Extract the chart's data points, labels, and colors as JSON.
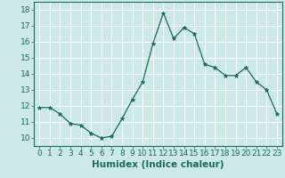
{
  "x": [
    0,
    1,
    2,
    3,
    4,
    5,
    6,
    7,
    8,
    9,
    10,
    11,
    12,
    13,
    14,
    15,
    16,
    17,
    18,
    19,
    20,
    21,
    22,
    23
  ],
  "y": [
    11.9,
    11.9,
    11.5,
    10.9,
    10.8,
    10.3,
    10.0,
    10.1,
    11.2,
    12.4,
    13.5,
    15.9,
    17.8,
    16.2,
    16.9,
    16.5,
    14.6,
    14.4,
    13.9,
    13.9,
    14.4,
    13.5,
    13.0,
    11.5
  ],
  "xlabel": "Humidex (Indice chaleur)",
  "xlim": [
    -0.5,
    23.5
  ],
  "ylim": [
    9.5,
    18.5
  ],
  "yticks": [
    10,
    11,
    12,
    13,
    14,
    15,
    16,
    17,
    18
  ],
  "xticks": [
    0,
    1,
    2,
    3,
    4,
    5,
    6,
    7,
    8,
    9,
    10,
    11,
    12,
    13,
    14,
    15,
    16,
    17,
    18,
    19,
    20,
    21,
    22,
    23
  ],
  "line_color": "#1a6b5a",
  "marker": "*",
  "marker_size": 3.5,
  "bg_color": "#cce8e8",
  "grid_color": "#ffffff",
  "xlabel_fontsize": 7.5,
  "tick_fontsize": 6.5
}
